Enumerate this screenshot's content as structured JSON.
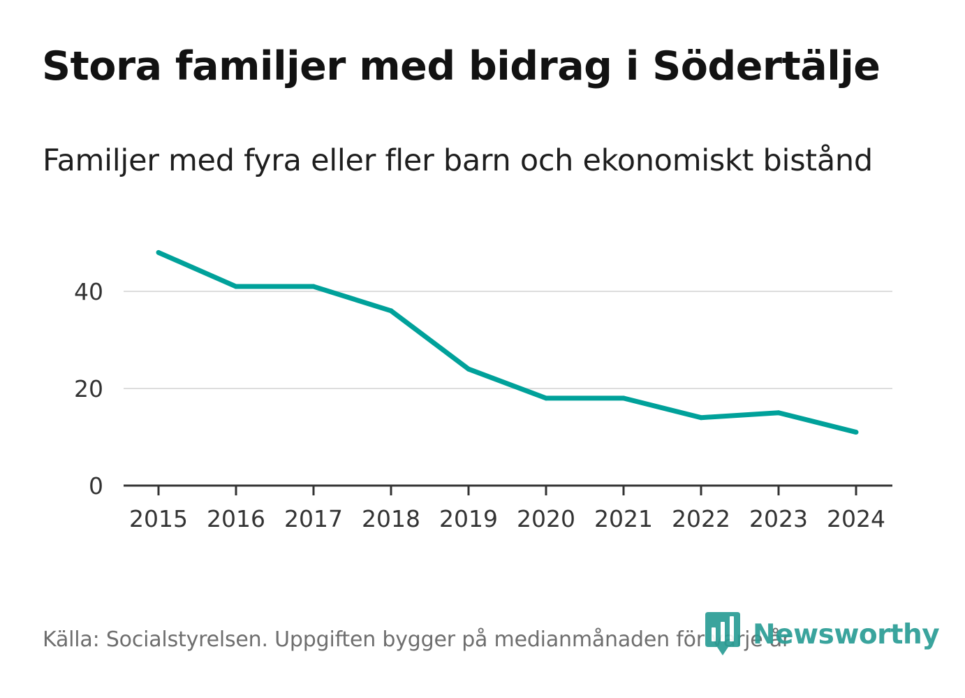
{
  "title": "Stora familjer med bidrag i Södertälje",
  "subtitle": "Familjer med fyra eller fler barn och ekonomiskt bistånd",
  "source": "Källa: Socialstyrelsen. Uppgiften bygger på medianmånaden för varje år",
  "brand": {
    "name": "Newsworthy",
    "icon": "bar-chart-marker-icon",
    "color": "#2a9d95"
  },
  "colors": {
    "line": "#00a19a",
    "grid": "#dddddd",
    "axis": "#333333"
  },
  "chart_data": {
    "type": "line",
    "title": "Stora familjer med bidrag i Södertälje",
    "subtitle": "Familjer med fyra eller fler barn och ekonomiskt bistånd",
    "x": [
      "2015",
      "2016",
      "2017",
      "2018",
      "2019",
      "2020",
      "2021",
      "2022",
      "2023",
      "2024"
    ],
    "series": [
      {
        "name": "Familjer med fyra eller fler barn och ekonomiskt bistånd",
        "values": [
          48,
          41,
          41,
          36,
          24,
          18,
          18,
          14,
          15,
          11
        ]
      }
    ],
    "yticks": [
      0,
      20,
      40
    ],
    "ylim": [
      0,
      52
    ],
    "xlabel": "",
    "ylabel": "",
    "grid": true,
    "legend": "none"
  }
}
